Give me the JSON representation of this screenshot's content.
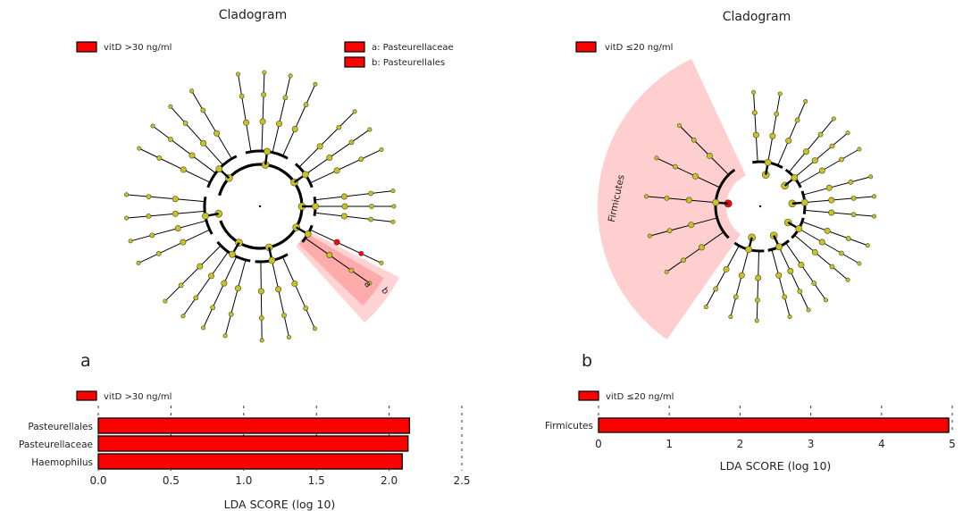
{
  "colors": {
    "enriched": "#ff0000",
    "highlight": "#ff9e9e",
    "node": "#c9c31a",
    "branch": "#000000"
  },
  "panel_a": {
    "letter": "a",
    "cladogram_title": "Cladogram",
    "cladogram_legend": [
      "vitD >30 ng/ml"
    ],
    "clade_key": [
      {
        "letter": "a",
        "label": "a: Pasteurellaceae"
      },
      {
        "letter": "b",
        "label": "b: Pasteurellales"
      }
    ]
  },
  "panel_b": {
    "letter": "b",
    "cladogram_title": "Cladogram",
    "cladogram_legend": [
      "vitD ≤20 ng/ml"
    ],
    "clade_label": "Firmicutes"
  },
  "chart_data": [
    {
      "type": "bar",
      "orientation": "horizontal",
      "legend": [
        "vitD >30 ng/ml"
      ],
      "categories": [
        "Pasteurellales",
        "Pasteurellaceae",
        "Haemophilus"
      ],
      "values": [
        2.14,
        2.13,
        2.09
      ],
      "xlabel": "LDA SCORE (log 10)",
      "xlim": [
        0,
        2.5
      ],
      "xticks": [
        "0.0",
        "0.5",
        "1.0",
        "1.5",
        "2.0",
        "2.5"
      ],
      "grid": true
    },
    {
      "type": "bar",
      "orientation": "horizontal",
      "legend": [
        "vitD ≤20 ng/ml"
      ],
      "categories": [
        "Firmicutes"
      ],
      "values": [
        4.95
      ],
      "xlabel": "LDA SCORE (log 10)",
      "xlim": [
        0,
        5
      ],
      "xticks": [
        "0",
        "1",
        "2",
        "3",
        "4",
        "5"
      ],
      "grid": true
    }
  ]
}
